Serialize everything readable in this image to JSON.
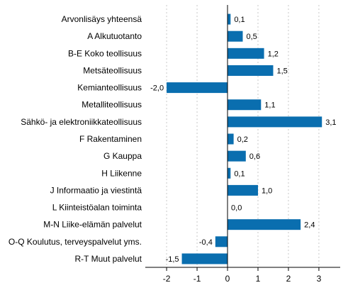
{
  "chart_data": {
    "type": "bar",
    "orientation": "horizontal",
    "categories": [
      "Arvonlisäys yhteensä",
      "A Alkutuotanto",
      "B-E Koko teollisuus",
      "Metsäteollisuus",
      "Kemianteollisuus",
      "Metalliteollisuus",
      "Sähkö- ja elektroniikkateollisuus",
      "F Rakentaminen",
      "G Kauppa",
      "H Liikenne",
      "J Informaatio ja viestintä",
      "L Kiinteistöalan toiminta",
      "M-N Liike-elämän palvelut",
      "O-Q Koulutus, terveyspalvelut yms.",
      "R-T Muut palvelut"
    ],
    "values": [
      0.1,
      0.5,
      1.2,
      1.5,
      -2.0,
      1.1,
      3.1,
      0.2,
      0.6,
      0.1,
      1.0,
      0.0,
      2.4,
      -0.4,
      -1.5
    ],
    "value_labels": [
      "0,1",
      "0,5",
      "1,2",
      "1,5",
      "-2,0",
      "1,1",
      "3,1",
      "0,2",
      "0,6",
      "0,1",
      "1,0",
      "0,0",
      "2,4",
      "-0,4",
      "-1,5"
    ],
    "xlim": [
      -2.7,
      3.7
    ],
    "xticks": [
      -2,
      -1,
      0,
      1,
      2,
      3
    ],
    "xtick_labels": [
      "-2",
      "-1",
      "0",
      "1",
      "2",
      "3"
    ],
    "grid": true,
    "bar_color": "#0a6eaf",
    "title": "",
    "xlabel": "",
    "ylabel": ""
  }
}
